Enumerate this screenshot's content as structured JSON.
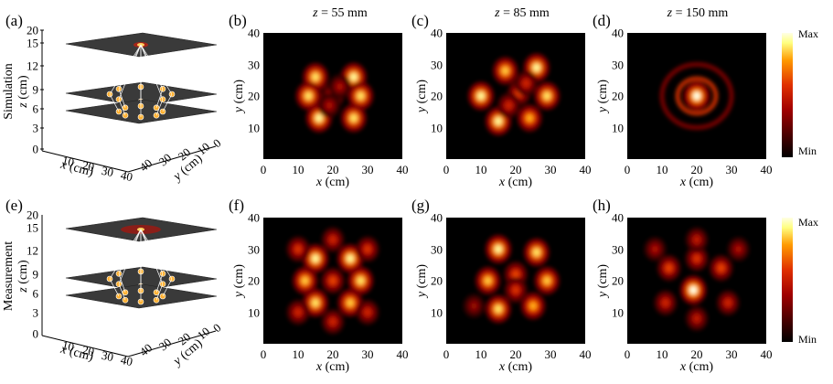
{
  "rows": [
    {
      "label": "Simulation",
      "panel_3d": "(a)"
    },
    {
      "label": "Measurement",
      "panel_3d": "(e)"
    }
  ],
  "axis3d": {
    "z_label": "z (cm)",
    "x_label": "x (cm)",
    "y_label": "y (cm)",
    "z_ticks": [
      "20",
      "15",
      "12",
      "9",
      "6",
      "3",
      "0"
    ],
    "x_ticks": [
      "10",
      "20",
      "30",
      "40"
    ],
    "y_ticks": [
      "40",
      "30",
      "20",
      "10",
      "0"
    ]
  },
  "titles": [
    "z = 55 mm",
    "z = 85 mm",
    "z = 150 mm"
  ],
  "title_parts": [
    {
      "var": "z",
      "rest": " = 55 mm"
    },
    {
      "var": "z",
      "rest": " = 85 mm"
    },
    {
      "var": "z",
      "rest": " = 150 mm"
    }
  ],
  "panels": [
    {
      "letter": "(b)",
      "row": 0,
      "col": 0
    },
    {
      "letter": "(c)",
      "row": 0,
      "col": 1
    },
    {
      "letter": "(d)",
      "row": 0,
      "col": 2
    },
    {
      "letter": "(f)",
      "row": 1,
      "col": 0
    },
    {
      "letter": "(g)",
      "row": 1,
      "col": 1
    },
    {
      "letter": "(h)",
      "row": 1,
      "col": 2
    }
  ],
  "heatmap_axes": {
    "x_label": "x (cm)",
    "y_label": "y (cm)",
    "x_ticks": [
      "0",
      "10",
      "20",
      "30",
      "40"
    ],
    "y_ticks": [
      "40",
      "30",
      "20",
      "10"
    ]
  },
  "colorbar": {
    "max": "Max",
    "min": "Min",
    "colormap": "hot"
  },
  "chart_data": [
    {
      "type": "heatmap",
      "panel": "(b)",
      "title": "z = 55 mm",
      "xlabel": "x (cm)",
      "ylabel": "y (cm)",
      "xlim": [
        0,
        40
      ],
      "ylim": [
        0,
        40
      ],
      "spots": [
        [
          15,
          26,
          0.9
        ],
        [
          26,
          26,
          0.95
        ],
        [
          13,
          20,
          0.9
        ],
        [
          28,
          20,
          0.9
        ],
        [
          16,
          13,
          0.95
        ],
        [
          26,
          13,
          0.9
        ],
        [
          20,
          20,
          0.55
        ],
        [
          22,
          23,
          0.4
        ],
        [
          19,
          17,
          0.4
        ]
      ]
    },
    {
      "type": "heatmap",
      "panel": "(c)",
      "title": "z = 85 mm",
      "xlabel": "x (cm)",
      "ylabel": "y (cm)",
      "xlim": [
        0,
        40
      ],
      "ylim": [
        0,
        40
      ],
      "spots": [
        [
          17,
          28,
          0.85
        ],
        [
          26,
          29,
          0.95
        ],
        [
          10,
          20,
          0.95
        ],
        [
          29,
          20,
          0.9
        ],
        [
          15,
          12,
          0.95
        ],
        [
          24,
          13,
          0.8
        ],
        [
          21,
          21,
          0.6
        ],
        [
          18,
          17,
          0.5
        ],
        [
          23,
          24,
          0.5
        ]
      ]
    },
    {
      "type": "heatmap",
      "panel": "(d)",
      "title": "z = 150 mm",
      "xlabel": "x (cm)",
      "ylabel": "y (cm)",
      "xlim": [
        0,
        40
      ],
      "ylim": [
        0,
        40
      ],
      "spots": [
        [
          20,
          20,
          1.0
        ]
      ],
      "rings": [
        [
          20,
          20,
          5.5,
          0.55
        ],
        [
          20,
          20,
          10,
          0.3
        ]
      ]
    },
    {
      "type": "heatmap",
      "panel": "(f)",
      "title": "",
      "xlabel": "x (cm)",
      "ylabel": "y (cm)",
      "xlim": [
        0,
        40
      ],
      "ylim": [
        0,
        40
      ],
      "spots": [
        [
          15,
          27,
          0.95
        ],
        [
          25,
          27,
          0.95
        ],
        [
          12,
          20,
          0.85
        ],
        [
          28,
          20,
          0.9
        ],
        [
          15,
          13,
          0.9
        ],
        [
          25,
          13,
          0.85
        ],
        [
          20,
          20,
          0.6
        ],
        [
          10,
          30,
          0.55
        ],
        [
          30,
          30,
          0.55
        ],
        [
          10,
          10,
          0.5
        ],
        [
          30,
          10,
          0.5
        ],
        [
          20,
          33,
          0.5
        ],
        [
          20,
          7,
          0.5
        ]
      ]
    },
    {
      "type": "heatmap",
      "panel": "(g)",
      "title": "",
      "xlabel": "x (cm)",
      "ylabel": "y (cm)",
      "xlim": [
        0,
        40
      ],
      "ylim": [
        0,
        40
      ],
      "spots": [
        [
          15,
          30,
          0.95
        ],
        [
          26,
          29,
          0.9
        ],
        [
          12,
          20,
          0.85
        ],
        [
          29,
          20,
          0.85
        ],
        [
          15,
          11,
          0.9
        ],
        [
          25,
          12,
          0.8
        ],
        [
          20,
          22,
          0.6
        ],
        [
          20,
          17,
          0.55
        ],
        [
          8,
          12,
          0.35
        ]
      ]
    },
    {
      "type": "heatmap",
      "panel": "(h)",
      "title": "",
      "xlabel": "x (cm)",
      "ylabel": "y (cm)",
      "xlim": [
        0,
        40
      ],
      "ylim": [
        0,
        40
      ],
      "spots": [
        [
          19,
          17,
          1.0
        ],
        [
          12,
          24,
          0.6
        ],
        [
          27,
          24,
          0.6
        ],
        [
          20,
          27,
          0.55
        ],
        [
          11,
          13,
          0.5
        ],
        [
          29,
          13,
          0.5
        ],
        [
          20,
          33,
          0.45
        ],
        [
          20,
          8,
          0.45
        ],
        [
          8,
          30,
          0.4
        ],
        [
          32,
          30,
          0.4
        ]
      ]
    }
  ]
}
